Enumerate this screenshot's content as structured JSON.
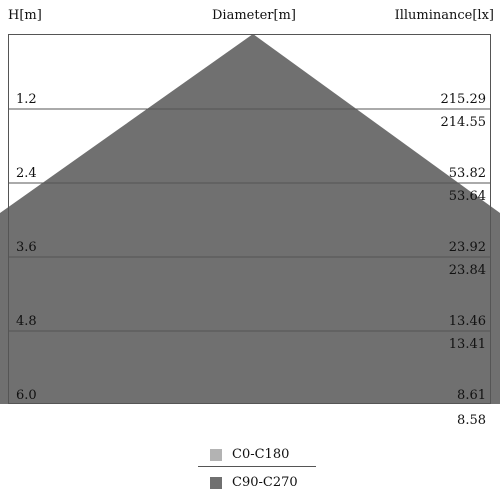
{
  "header": {
    "height_label": "H[m]",
    "diameter_label": "Diameter[m]",
    "illuminance_label": "Illuminance[lx]"
  },
  "rows": [
    {
      "height": "1.2",
      "lux_c0": "215.29",
      "lux_c90": "214.55"
    },
    {
      "height": "2.4",
      "lux_c0": "53.82",
      "lux_c90": "53.64"
    },
    {
      "height": "3.6",
      "lux_c0": "23.92",
      "lux_c90": "23.84"
    },
    {
      "height": "4.8",
      "lux_c0": "13.46",
      "lux_c90": "13.41"
    },
    {
      "height": "6.0",
      "lux_c0": "8.61",
      "lux_c90": "8.58"
    }
  ],
  "legend": [
    {
      "label": "C0-C180",
      "color": "#b3b3b3"
    },
    {
      "label": "C90-C270",
      "color": "#707070"
    }
  ],
  "colors": {
    "c0_fill": "#b3b3b3",
    "c90_fill": "#707070",
    "frame": "#555555"
  }
}
